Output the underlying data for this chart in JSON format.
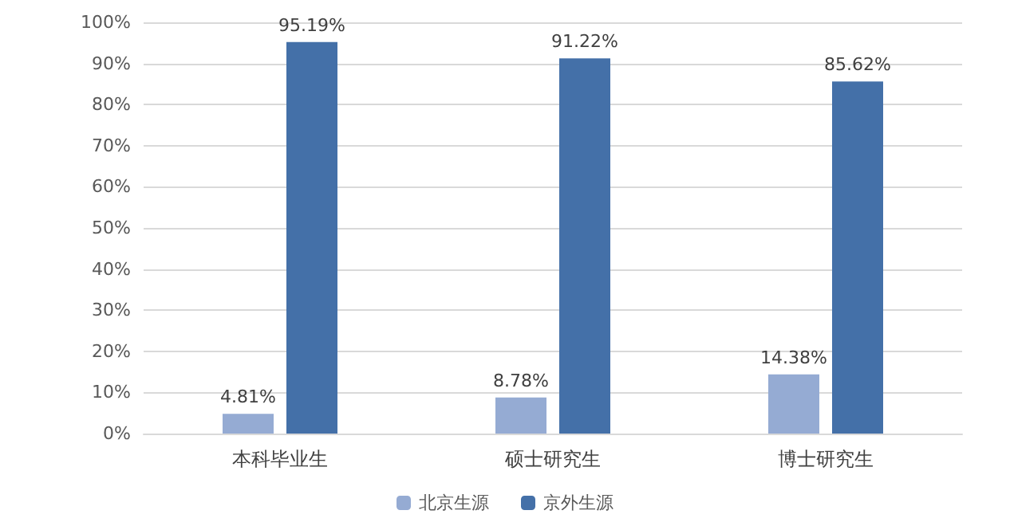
{
  "chart_data": {
    "type": "bar",
    "categories": [
      "本科毕业生",
      "硕士研究生",
      "博士研究生"
    ],
    "series": [
      {
        "name": "北京生源",
        "color": "#95abd3",
        "values": [
          4.81,
          8.78,
          14.38
        ],
        "value_labels": [
          "4.81%",
          "8.78%",
          "14.38%"
        ]
      },
      {
        "name": "京外生源",
        "color": "#4470a8",
        "values": [
          95.19,
          91.22,
          85.62
        ],
        "value_labels": [
          "95.19%",
          "91.22%",
          "85.62%"
        ]
      }
    ],
    "ylim": [
      0,
      100
    ],
    "yticks": [
      {
        "value": 0,
        "label": "0%"
      },
      {
        "value": 10,
        "label": "10%"
      },
      {
        "value": 20,
        "label": "20%"
      },
      {
        "value": 30,
        "label": "30%"
      },
      {
        "value": 40,
        "label": "40%"
      },
      {
        "value": 50,
        "label": "50%"
      },
      {
        "value": 60,
        "label": "60%"
      },
      {
        "value": 70,
        "label": "70%"
      },
      {
        "value": 80,
        "label": "80%"
      },
      {
        "value": 90,
        "label": "90%"
      },
      {
        "value": 100,
        "label": "100%"
      }
    ],
    "grid": "y",
    "legend": "bottom"
  }
}
